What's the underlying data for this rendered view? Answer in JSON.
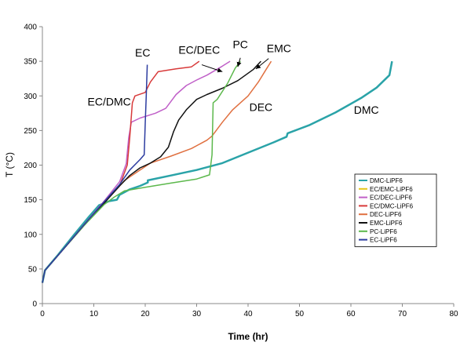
{
  "chart_data": {
    "type": "line",
    "xlabel": "Time (hr)",
    "ylabel": "T (°C)",
    "xlim": [
      0,
      80
    ],
    "ylim": [
      0,
      400
    ],
    "xticks": [
      0,
      10,
      20,
      30,
      40,
      50,
      60,
      70,
      80
    ],
    "yticks": [
      0,
      50,
      100,
      150,
      200,
      250,
      300,
      350,
      400
    ],
    "grid": false,
    "legend_position": "bottom-right",
    "series": [
      {
        "name": "DMC-LiPF6",
        "color": "#2aa3a8",
        "points": [
          [
            0,
            30
          ],
          [
            0.5,
            48
          ],
          [
            3,
            70
          ],
          [
            6,
            98
          ],
          [
            9,
            125
          ],
          [
            11,
            142
          ],
          [
            13,
            148
          ],
          [
            14.5,
            150
          ],
          [
            15,
            157
          ],
          [
            17,
            165
          ],
          [
            19,
            170
          ],
          [
            20.5,
            175
          ],
          [
            20.5,
            178
          ],
          [
            25,
            185
          ],
          [
            30,
            193
          ],
          [
            35,
            203
          ],
          [
            40,
            218
          ],
          [
            45,
            233
          ],
          [
            47.5,
            241
          ],
          [
            47.7,
            246
          ],
          [
            52,
            258
          ],
          [
            57,
            276
          ],
          [
            62,
            297
          ],
          [
            65,
            312
          ],
          [
            67.5,
            330
          ],
          [
            68,
            350
          ]
        ]
      },
      {
        "name": "EC/EMC-LiPF6",
        "color": "#e6c619",
        "points": []
      },
      {
        "name": "EC/DEC-LiPF6",
        "color": "#c060c8",
        "points": [
          [
            0,
            30
          ],
          [
            0.5,
            48
          ],
          [
            4,
            78
          ],
          [
            8,
            113
          ],
          [
            12,
            148
          ],
          [
            15,
            176
          ],
          [
            16.3,
            202
          ],
          [
            16.8,
            240
          ],
          [
            17.3,
            262
          ],
          [
            19,
            268
          ],
          [
            22,
            275
          ],
          [
            24,
            282
          ],
          [
            26,
            302
          ],
          [
            28,
            315
          ],
          [
            30,
            323
          ],
          [
            32,
            330
          ],
          [
            35,
            343
          ],
          [
            36.5,
            350
          ]
        ]
      },
      {
        "name": "EC/DMC-LiPF6",
        "color": "#d83a3a",
        "points": [
          [
            0,
            30
          ],
          [
            0.5,
            48
          ],
          [
            4,
            78
          ],
          [
            8,
            113
          ],
          [
            12,
            147
          ],
          [
            15,
            170
          ],
          [
            16.5,
            200
          ],
          [
            17,
            240
          ],
          [
            17.5,
            290
          ],
          [
            18,
            300
          ],
          [
            20,
            305
          ],
          [
            21,
            320
          ],
          [
            22.5,
            335
          ],
          [
            26,
            339
          ],
          [
            29,
            342
          ],
          [
            30.5,
            350
          ]
        ]
      },
      {
        "name": "DEC-LiPF6",
        "color": "#e07040",
        "points": [
          [
            0,
            30
          ],
          [
            0.5,
            48
          ],
          [
            4,
            78
          ],
          [
            8,
            112
          ],
          [
            12,
            145
          ],
          [
            16,
            178
          ],
          [
            19,
            193
          ],
          [
            21,
            203
          ],
          [
            25,
            213
          ],
          [
            29,
            224
          ],
          [
            32,
            236
          ],
          [
            33,
            242
          ],
          [
            35,
            262
          ],
          [
            37,
            280
          ],
          [
            40,
            300
          ],
          [
            42,
            320
          ],
          [
            43.5,
            338
          ],
          [
            44.5,
            350
          ]
        ]
      },
      {
        "name": "EMC-LiPF6",
        "color": "#111111",
        "points": [
          [
            0,
            30
          ],
          [
            0.5,
            48
          ],
          [
            4,
            78
          ],
          [
            8,
            112
          ],
          [
            12,
            145
          ],
          [
            15,
            170
          ],
          [
            17,
            185
          ],
          [
            19,
            196
          ],
          [
            21,
            203
          ],
          [
            23,
            212
          ],
          [
            24.5,
            226
          ],
          [
            25.5,
            248
          ],
          [
            26.5,
            265
          ],
          [
            28,
            280
          ],
          [
            30,
            295
          ],
          [
            32,
            302
          ],
          [
            35,
            311
          ],
          [
            38,
            322
          ],
          [
            41,
            338
          ],
          [
            42.5,
            350
          ]
        ]
      },
      {
        "name": "PC-LiPF6",
        "color": "#5cb84c",
        "points": [
          [
            0,
            30
          ],
          [
            0.5,
            48
          ],
          [
            4,
            78
          ],
          [
            8,
            112
          ],
          [
            12,
            143
          ],
          [
            14,
            154
          ],
          [
            16,
            163
          ],
          [
            20,
            168
          ],
          [
            25,
            174
          ],
          [
            30,
            180
          ],
          [
            32.5,
            186
          ],
          [
            33,
            215
          ],
          [
            33.2,
            290
          ],
          [
            34,
            295
          ],
          [
            36,
            318
          ],
          [
            37.5,
            340
          ],
          [
            38.5,
            350
          ]
        ]
      },
      {
        "name": "EC-LiPF6",
        "color": "#2c3ca0",
        "points": [
          [
            0,
            30
          ],
          [
            0.5,
            48
          ],
          [
            4,
            78
          ],
          [
            8,
            113
          ],
          [
            12,
            147
          ],
          [
            15,
            172
          ],
          [
            17,
            193
          ],
          [
            19,
            208
          ],
          [
            19.8,
            215
          ],
          [
            20,
            260
          ],
          [
            20.2,
            300
          ],
          [
            20.4,
            345
          ]
        ]
      }
    ],
    "annotations": [
      {
        "text": "EC",
        "x": 19.5,
        "y": 357
      },
      {
        "text": "EC/DEC",
        "x": 30.5,
        "y": 361
      },
      {
        "text": "PC",
        "x": 38.5,
        "y": 369
      },
      {
        "text": "EMC",
        "x": 46,
        "y": 363
      },
      {
        "text": "EC/DMC",
        "x": 13,
        "y": 286
      },
      {
        "text": "DEC",
        "x": 42.5,
        "y": 278
      },
      {
        "text": "DMC",
        "x": 63,
        "y": 274
      }
    ],
    "arrows": [
      {
        "from": [
          31,
          345
        ],
        "to": [
          35,
          335
        ]
      },
      {
        "from": [
          38.5,
          355
        ],
        "to": [
          38,
          342
        ]
      },
      {
        "from": [
          44,
          354
        ],
        "to": [
          41.5,
          339
        ]
      }
    ]
  }
}
